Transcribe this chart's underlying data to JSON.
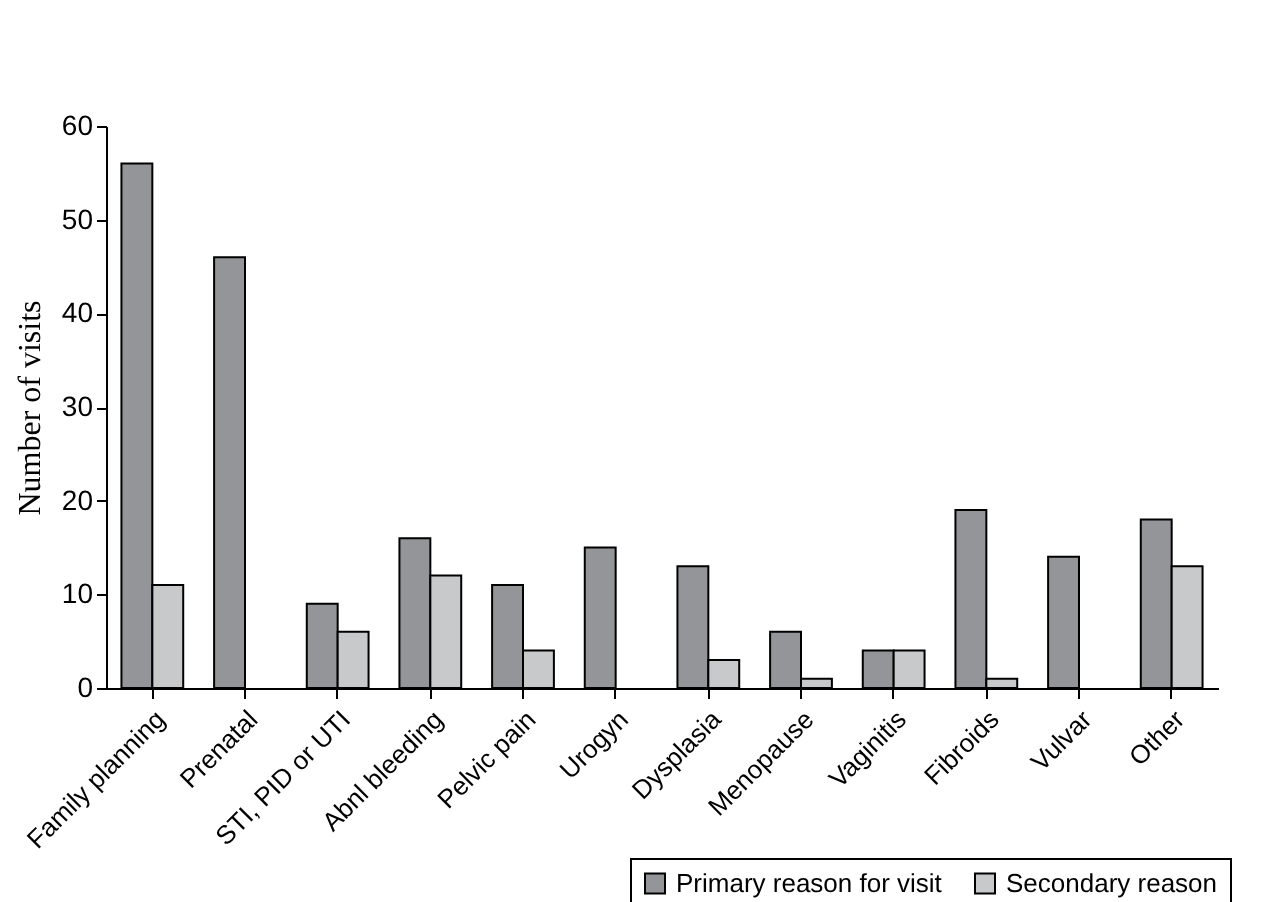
{
  "chart_data": {
    "type": "bar",
    "ylabel": "Number of visits",
    "categories": [
      "Family planning",
      "Prenatal",
      "STI, PID or UTI",
      "Abnl bleeding",
      "Pelvic pain",
      "Urogyn",
      "Dysplasia",
      "Menopause",
      "Vaginitis",
      "Fibroids",
      "Vulvar",
      "Other"
    ],
    "series": [
      {
        "name": "Primary reason for visit",
        "color": "#939598",
        "values": [
          56,
          46,
          9,
          16,
          11,
          15,
          13,
          6,
          4,
          19,
          14,
          18
        ]
      },
      {
        "name": "Secondary reason",
        "color": "#c8c9cb",
        "values": [
          11,
          null,
          6,
          12,
          4,
          null,
          3,
          1,
          4,
          1,
          null,
          13
        ]
      }
    ],
    "ylim": [
      0,
      60
    ],
    "yticks": [
      0,
      10,
      20,
      30,
      40,
      50,
      60
    ],
    "grid": false,
    "legend": "bottom right"
  }
}
